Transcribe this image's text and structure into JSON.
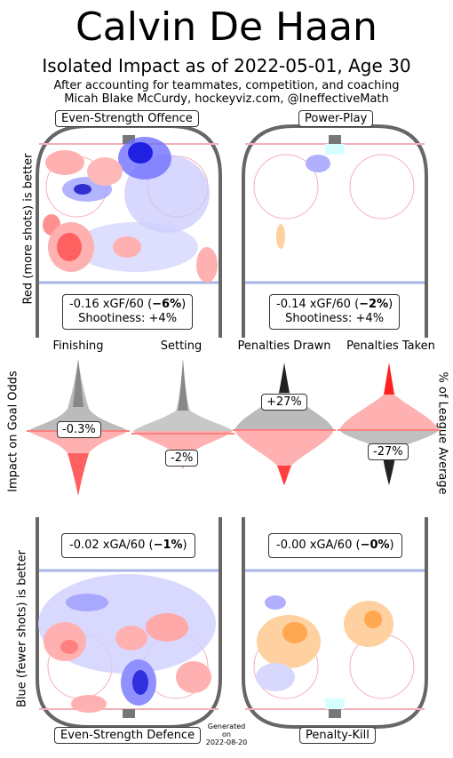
{
  "header": {
    "title": "Calvin De Haan",
    "subtitle": "Isolated Impact as of 2022-05-01, Age 30",
    "note_line1": "After accounting for teammates, competition, and coaching",
    "note_line2": "Micah Blake McCurdy, hockeyviz.com, @IneffectiveMath"
  },
  "axes_labels": {
    "left_top": "Red (more shots) is better",
    "left_middle": "Impact on Goal Odds",
    "left_bottom": "Blue (fewer shots) is better",
    "right_middle": "% of League Average"
  },
  "panels": {
    "ev_offence": {
      "label": "Even-Strength Offence",
      "stat": "-0.16 xGF/60 (",
      "pct": "−6%",
      "stat_end": ")",
      "shootiness": "Shootiness: +4%"
    },
    "power_play": {
      "label": "Power-Play",
      "stat": "-0.14 xGF/60 (",
      "pct": "−2%",
      "stat_end": ")",
      "shootiness": "Shootiness: +4%"
    },
    "ev_defence": {
      "label": "Even-Strength Defence",
      "stat": "-0.02 xGA/60 (",
      "pct": "−1%",
      "stat_end": ")"
    },
    "penalty_kill": {
      "label": "Penalty-Kill",
      "stat": "-0.00 xGA/60 (",
      "pct": "−0%",
      "stat_end": ")"
    }
  },
  "footer": {
    "generated": "Generated",
    "on": "on",
    "date": "2022-08-20"
  },
  "colors": {
    "red": "#ff2020",
    "blue": "#2020ff",
    "gray": "#555555",
    "rink": "#666666",
    "blueline": "#aab4e6",
    "redline": "#f4b0b8"
  },
  "chart_data": {
    "type": "violin",
    "categories": [
      "Finishing",
      "Setting",
      "Penalties Drawn",
      "Penalties Taken"
    ],
    "values_percent": [
      -0.3,
      -2,
      27,
      -27
    ],
    "value_labels": [
      "-0.3%",
      "-2%",
      "+27%",
      "-27%"
    ]
  }
}
